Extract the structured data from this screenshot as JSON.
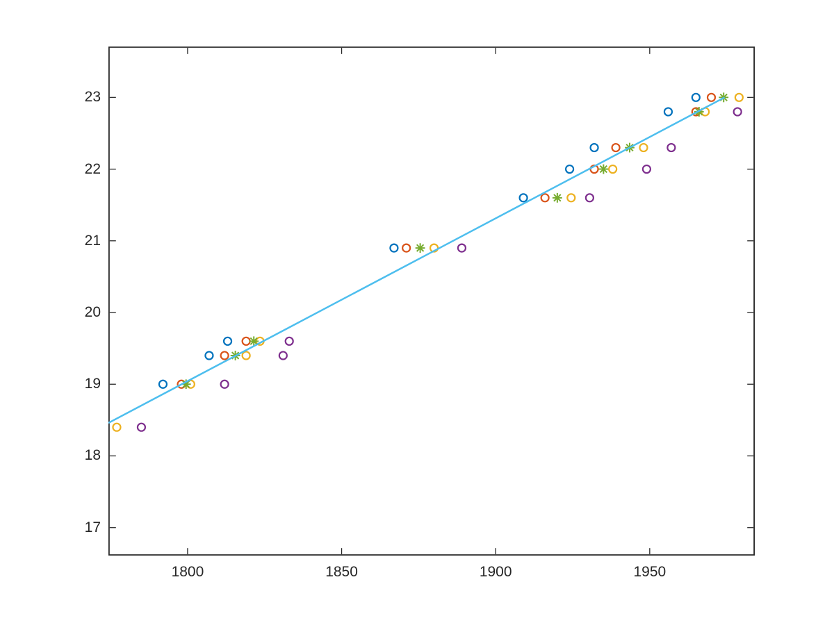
{
  "figure": {
    "background_color": "#FFFFFF",
    "axis_color": "#262626",
    "tick_label_color": "#262626"
  },
  "chart_data": {
    "type": "scatter",
    "title": "",
    "xlabel": "",
    "ylabel": "",
    "grid": false,
    "box": true,
    "legend": null,
    "xlim": [
      1774.3,
      1984.1
    ],
    "ylim": [
      16.61,
      23.71
    ],
    "xticks": [
      1800,
      1850,
      1900,
      1950
    ],
    "yticks": [
      17,
      18,
      19,
      20,
      21,
      22,
      23
    ],
    "series": [
      {
        "name": "series-blue-circles",
        "marker": "circle",
        "color": "#0072BD",
        "points": [
          [
            1792,
            19.0
          ],
          [
            1807,
            19.4
          ],
          [
            1813,
            19.6
          ],
          [
            1867,
            20.9
          ],
          [
            1909,
            21.6
          ],
          [
            1924,
            22.0
          ],
          [
            1932,
            22.3
          ],
          [
            1956,
            22.8
          ],
          [
            1965,
            23.0
          ]
        ]
      },
      {
        "name": "series-orange-circles",
        "marker": "circle",
        "color": "#D95319",
        "points": [
          [
            1798,
            19.0
          ],
          [
            1812,
            19.4
          ],
          [
            1819,
            19.6
          ],
          [
            1871,
            20.9
          ],
          [
            1916,
            21.6
          ],
          [
            1932,
            22.0
          ],
          [
            1939,
            22.3
          ],
          [
            1965,
            22.8
          ],
          [
            1970,
            23.0
          ]
        ]
      },
      {
        "name": "series-yellow-circles",
        "marker": "circle",
        "color": "#EDB120",
        "points": [
          [
            1777,
            18.4
          ],
          [
            1801,
            19.0
          ],
          [
            1819,
            19.4
          ],
          [
            1823.5,
            19.6
          ],
          [
            1880,
            20.9
          ],
          [
            1924.5,
            21.6
          ],
          [
            1938,
            22.0
          ],
          [
            1948,
            22.3
          ],
          [
            1968,
            22.8
          ],
          [
            1979,
            23.0
          ]
        ]
      },
      {
        "name": "series-purple-circles",
        "marker": "circle",
        "color": "#7E2F8E",
        "points": [
          [
            1785,
            18.4
          ],
          [
            1812,
            19.0
          ],
          [
            1831,
            19.4
          ],
          [
            1833,
            19.6
          ],
          [
            1889,
            20.9
          ],
          [
            1930.5,
            21.6
          ],
          [
            1949,
            22.0
          ],
          [
            1957,
            22.3
          ],
          [
            1978.5,
            22.8
          ]
        ]
      },
      {
        "name": "series-green-asterisks",
        "marker": "asterisk",
        "color": "#77AC30",
        "points": [
          [
            1799.5,
            19.0
          ],
          [
            1815.5,
            19.4
          ],
          [
            1821.5,
            19.6
          ],
          [
            1875.5,
            20.9
          ],
          [
            1920,
            21.6
          ],
          [
            1935,
            22.0
          ],
          [
            1943.5,
            22.3
          ],
          [
            1966,
            22.8
          ],
          [
            1974,
            23.0
          ]
        ]
      }
    ],
    "fit_line": {
      "name": "fit-line",
      "color": "#4DBEEE",
      "points": [
        [
          1774.3,
          18.46
        ],
        [
          1974.3,
          23.0
        ]
      ]
    }
  }
}
